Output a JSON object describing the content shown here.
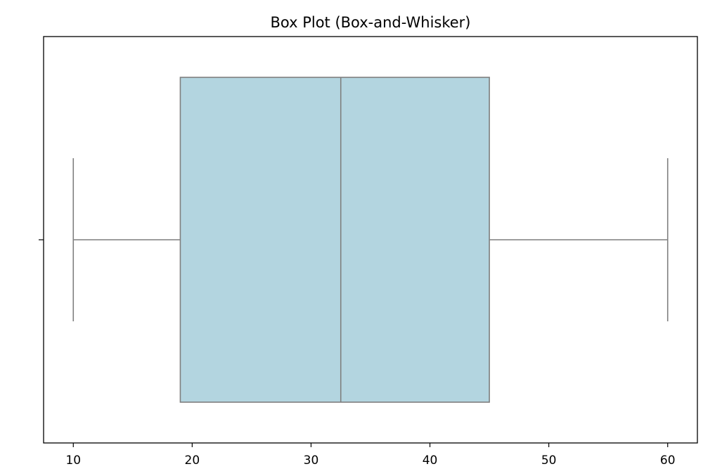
{
  "chart_data": {
    "type": "box",
    "title": "Box Plot (Box-and-Whisker)",
    "orientation": "horizontal",
    "xlabel": "",
    "ylabel": "",
    "xlim": [
      7.5,
      62.5
    ],
    "xticks": [
      10,
      20,
      30,
      40,
      50,
      60
    ],
    "grid": false,
    "series": [
      {
        "name": "",
        "min": 10,
        "q1": 19,
        "median": 32.5,
        "q3": 45,
        "max": 60,
        "outliers": []
      }
    ],
    "colors": {
      "box_fill": "#b3d5e0",
      "lines": "#7f7f7f",
      "axes": "#000000"
    }
  }
}
